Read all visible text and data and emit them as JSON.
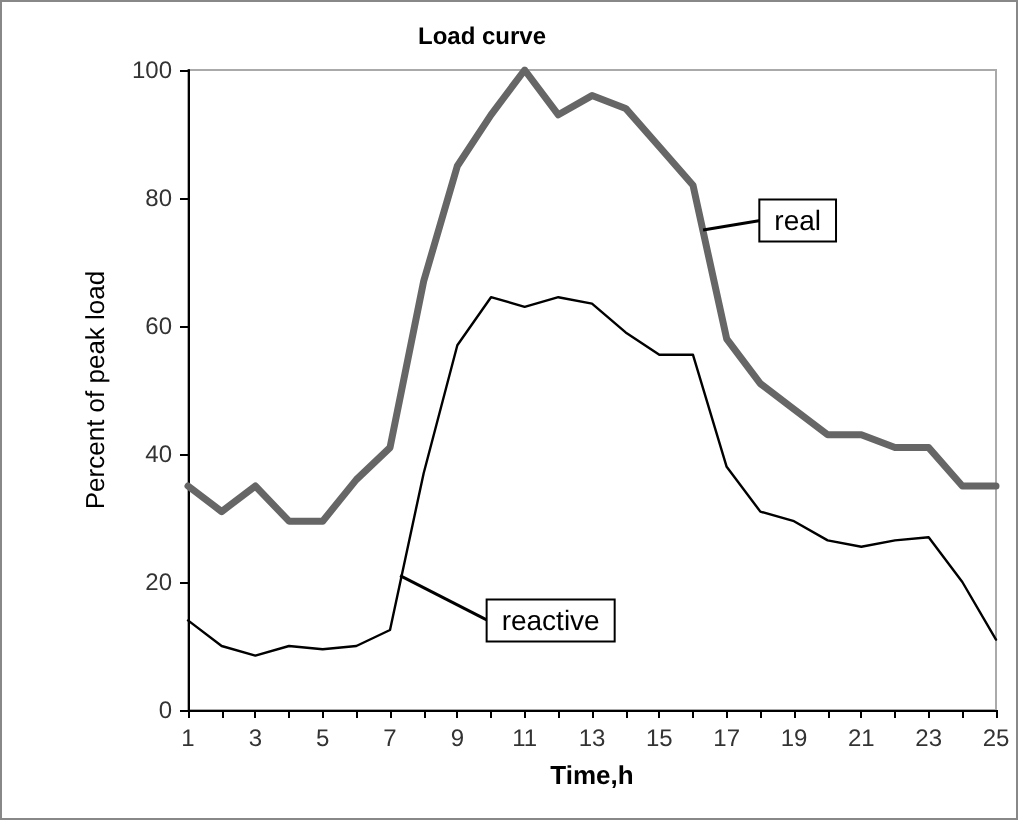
{
  "chart_data": {
    "type": "line",
    "title": "Load curve",
    "xlabel": "Time,h",
    "ylabel": "Percent of peak load",
    "x": [
      1,
      2,
      3,
      4,
      5,
      6,
      7,
      8,
      9,
      10,
      11,
      12,
      13,
      14,
      15,
      16,
      17,
      18,
      19,
      20,
      21,
      22,
      23,
      24,
      25
    ],
    "series": [
      {
        "color": "#666666",
        "values": [
          35,
          31,
          35,
          29.5,
          29.5,
          36,
          41,
          67,
          85,
          93,
          100,
          93,
          96,
          94,
          88,
          82,
          58,
          51,
          47,
          43,
          43,
          41,
          41,
          35,
          35
        ]
      },
      {
        "color": "#000000",
        "values": [
          14,
          10,
          8.5,
          10,
          9.5,
          10,
          12.5,
          37,
          57,
          64.5,
          63,
          64.5,
          63.5,
          59,
          55.5,
          55.5,
          38,
          31,
          29.5,
          26.5,
          25.5,
          26.5,
          27,
          20,
          11
        ]
      }
    ],
    "annotations": [
      {
        "text": "real",
        "x": 16.3,
        "y": 75
      },
      {
        "text": "reactive",
        "x": 7.3,
        "y": 21
      }
    ],
    "xlim": [
      1,
      25
    ],
    "xticks": [
      1,
      {
        "value": 2,
        "label": null
      },
      3,
      {
        "value": 4,
        "label": null
      },
      5,
      {
        "value": 6,
        "label": null
      },
      7,
      {
        "value": 8,
        "label": null
      },
      9,
      {
        "value": 10,
        "label": null
      },
      11,
      {
        "value": 12,
        "label": null
      },
      13,
      {
        "value": 14,
        "label": null
      },
      15,
      {
        "value": 16,
        "label": null
      },
      17,
      {
        "value": 18,
        "label": null
      },
      19,
      {
        "value": 20,
        "label": null
      },
      21,
      {
        "value": 22,
        "label": null
      },
      23,
      {
        "value": 24,
        "label": null
      },
      25
    ],
    "ylim": [
      0,
      100
    ],
    "yticks": [
      0,
      20,
      40,
      60,
      80,
      100
    ],
    "grid": false,
    "marker": "none",
    "line_style": "solid"
  }
}
